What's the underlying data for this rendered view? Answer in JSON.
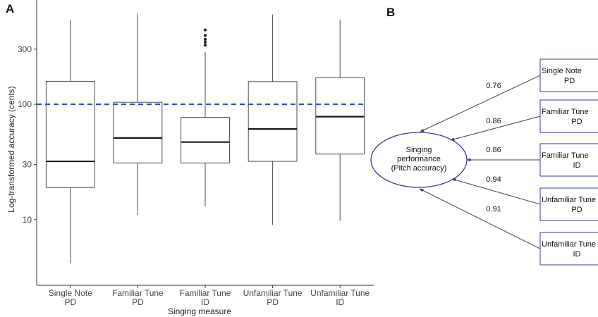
{
  "panel_a_label": "A",
  "panel_b_label": "B",
  "chart_data": [
    {
      "type": "box",
      "ylabel": "Log-transformed accuracy (cents)",
      "xlabel": "Singing measure",
      "y_scale": "log",
      "ylim": [
        2.7,
        800
      ],
      "yticks": [
        10,
        30,
        100,
        300
      ],
      "reference_line": {
        "y": 100,
        "style": "dashed",
        "color": "#2a4de0"
      },
      "categories": [
        {
          "line1": "Single Note",
          "line2": "PD"
        },
        {
          "line1": "Familiar Tune",
          "line2": "PD"
        },
        {
          "line1": "Familiar Tune",
          "line2": "ID"
        },
        {
          "line1": "Unfamiliar Tune",
          "line2": "PD"
        },
        {
          "line1": "Unfamiliar Tune",
          "line2": "ID"
        }
      ],
      "boxes": [
        {
          "whisker_low": 4.2,
          "q1": 19,
          "median": 32,
          "q3": 158,
          "whisker_high": 540,
          "outliers": []
        },
        {
          "whisker_low": 11,
          "q1": 31,
          "median": 51,
          "q3": 104,
          "whisker_high": 610,
          "outliers": []
        },
        {
          "whisker_low": 13,
          "q1": 31,
          "median": 47,
          "q3": 77,
          "whisker_high": 285,
          "outliers": [
            325,
            345,
            365,
            395,
            440
          ]
        },
        {
          "whisker_low": 9,
          "q1": 32,
          "median": 61,
          "q3": 157,
          "whisker_high": 600,
          "outliers": []
        },
        {
          "whisker_low": 9.8,
          "q1": 37,
          "median": 78,
          "q3": 170,
          "whisker_high": 540,
          "outliers": []
        }
      ]
    },
    {
      "type": "path-diagram",
      "latent": {
        "line1": "Singing",
        "line2": "performance",
        "line3": "(Pitch accuracy)"
      },
      "indicators": [
        {
          "line1": "Single Note",
          "line2": "PD",
          "loading": "0.76"
        },
        {
          "line1": "Familiar Tune",
          "line2": "PD",
          "loading": "0.86"
        },
        {
          "line1": "Familiar Tune",
          "line2": "ID",
          "loading": "0.86"
        },
        {
          "line1": "Unfamiliar Tune",
          "line2": "PD",
          "loading": "0.94"
        },
        {
          "line1": "Unfamiliar Tune",
          "line2": "ID",
          "loading": "0.91"
        }
      ]
    }
  ],
  "colors": {
    "box_edge": "#4a4a4a",
    "median": "#1a1a1a",
    "axis": "#333333",
    "diagram_blue": "#2d3e8f",
    "arrow": "#444444"
  }
}
